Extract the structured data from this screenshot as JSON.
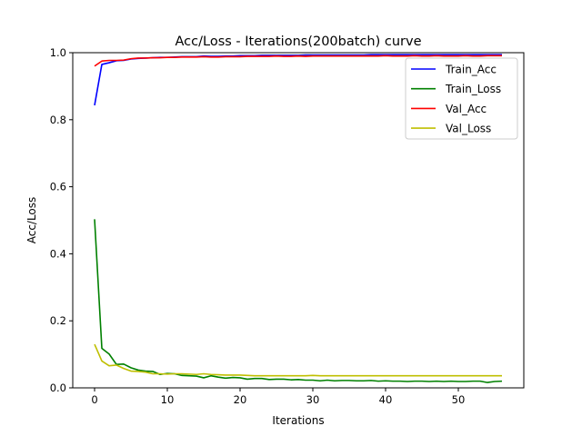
{
  "chart_data": {
    "type": "line",
    "title": "Acc/Loss - Iterations(200batch) curve",
    "xlabel": "Iterations",
    "ylabel": "Acc/Loss",
    "xlim": [
      -3.0,
      59.0
    ],
    "ylim": [
      0.0,
      1.0
    ],
    "xticks": [
      0,
      10,
      20,
      30,
      40,
      50
    ],
    "yticks": [
      0.0,
      0.2,
      0.4,
      0.6,
      0.8,
      1.0
    ],
    "ytick_labels": [
      "0.0",
      "0.2",
      "0.4",
      "0.6",
      "0.8",
      "1.0"
    ],
    "grid": false,
    "legend_position": "top-right",
    "series": [
      {
        "name": "Train_Acc",
        "color": "#0000ff",
        "values": [
          0.843,
          0.965,
          0.97,
          0.976,
          0.977,
          0.981,
          0.983,
          0.984,
          0.985,
          0.986,
          0.986,
          0.987,
          0.988,
          0.988,
          0.988,
          0.99,
          0.989,
          0.989,
          0.99,
          0.99,
          0.991,
          0.991,
          0.991,
          0.992,
          0.992,
          0.992,
          0.992,
          0.992,
          0.992,
          0.993,
          0.993,
          0.993,
          0.993,
          0.993,
          0.993,
          0.993,
          0.993,
          0.993,
          0.994,
          0.994,
          0.994,
          0.994,
          0.994,
          0.994,
          0.994,
          0.994,
          0.994,
          0.994,
          0.994,
          0.994,
          0.994,
          0.994,
          0.994,
          0.994,
          0.994,
          0.994,
          0.994
        ]
      },
      {
        "name": "Train_Loss",
        "color": "#008000",
        "values": [
          0.503,
          0.118,
          0.101,
          0.07,
          0.071,
          0.06,
          0.053,
          0.05,
          0.049,
          0.04,
          0.043,
          0.042,
          0.037,
          0.036,
          0.035,
          0.03,
          0.036,
          0.032,
          0.029,
          0.031,
          0.03,
          0.026,
          0.028,
          0.028,
          0.025,
          0.026,
          0.026,
          0.024,
          0.025,
          0.023,
          0.023,
          0.021,
          0.023,
          0.021,
          0.022,
          0.022,
          0.021,
          0.021,
          0.022,
          0.02,
          0.021,
          0.02,
          0.02,
          0.019,
          0.02,
          0.02,
          0.019,
          0.02,
          0.019,
          0.02,
          0.019,
          0.019,
          0.02,
          0.02,
          0.016,
          0.019,
          0.02
        ]
      },
      {
        "name": "Val_Acc",
        "color": "#ff0000",
        "values": [
          0.96,
          0.975,
          0.977,
          0.977,
          0.978,
          0.982,
          0.984,
          0.984,
          0.985,
          0.985,
          0.986,
          0.986,
          0.987,
          0.987,
          0.987,
          0.988,
          0.987,
          0.987,
          0.988,
          0.988,
          0.988,
          0.989,
          0.989,
          0.989,
          0.989,
          0.99,
          0.989,
          0.989,
          0.99,
          0.989,
          0.99,
          0.99,
          0.99,
          0.99,
          0.99,
          0.99,
          0.99,
          0.99,
          0.99,
          0.99,
          0.991,
          0.99,
          0.99,
          0.99,
          0.991,
          0.99,
          0.99,
          0.991,
          0.99,
          0.99,
          0.99,
          0.991,
          0.99,
          0.99,
          0.991,
          0.991,
          0.991
        ]
      },
      {
        "name": "Val_Loss",
        "color": "#bfbf00",
        "values": [
          0.13,
          0.08,
          0.066,
          0.068,
          0.058,
          0.05,
          0.049,
          0.047,
          0.042,
          0.042,
          0.041,
          0.042,
          0.042,
          0.041,
          0.04,
          0.042,
          0.04,
          0.039,
          0.038,
          0.038,
          0.038,
          0.037,
          0.036,
          0.036,
          0.036,
          0.036,
          0.036,
          0.036,
          0.036,
          0.036,
          0.037,
          0.036,
          0.036,
          0.036,
          0.036,
          0.036,
          0.036,
          0.036,
          0.036,
          0.036,
          0.036,
          0.036,
          0.036,
          0.036,
          0.036,
          0.036,
          0.036,
          0.036,
          0.036,
          0.036,
          0.036,
          0.036,
          0.036,
          0.036,
          0.036,
          0.036,
          0.036
        ]
      }
    ]
  }
}
